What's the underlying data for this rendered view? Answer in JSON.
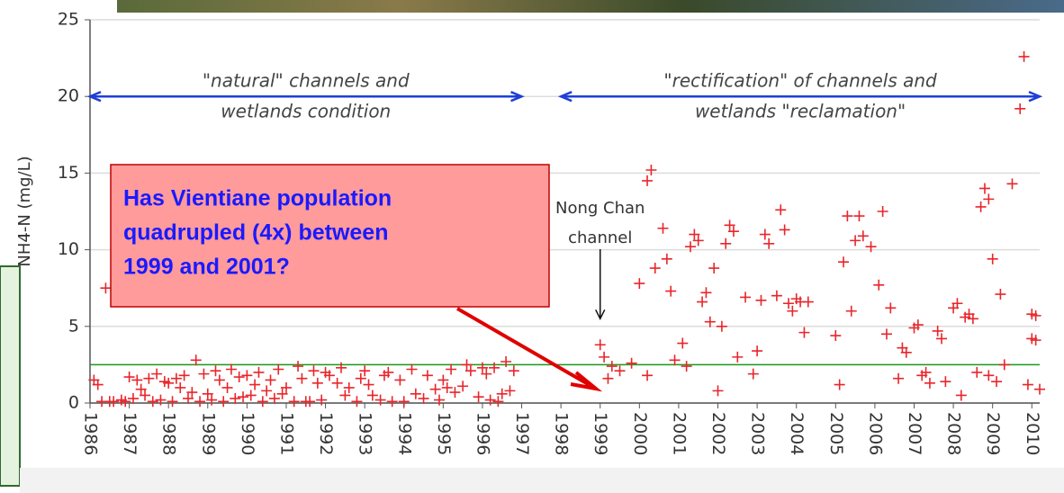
{
  "chart_data": {
    "type": "scatter",
    "ylabel": "NH4-N (mg/L)",
    "xlim": [
      1986,
      2010.2
    ],
    "ylim": [
      0,
      25
    ],
    "xticks": [
      1986,
      1987,
      1988,
      1989,
      1990,
      1991,
      1992,
      1993,
      1994,
      1995,
      1996,
      1997,
      1998,
      1999,
      2000,
      2001,
      2002,
      2003,
      2004,
      2005,
      2006,
      2007,
      2008,
      2009,
      2010
    ],
    "yticks": [
      0,
      5,
      10,
      15,
      20,
      25
    ],
    "grid": true,
    "reference_line": {
      "value": 2.5,
      "color": "#1a9a1a"
    },
    "series": [
      {
        "color": "#e8262b",
        "x": [
          1986.1,
          1986.2,
          1986.3,
          1986.4,
          1986.5,
          1986.6,
          1986.8,
          1986.9,
          1987.0,
          1987.1,
          1987.2,
          1987.3,
          1987.4,
          1987.5,
          1987.6,
          1987.7,
          1987.8,
          1987.9,
          1988.0,
          1988.1,
          1988.2,
          1988.3,
          1988.4,
          1988.5,
          1988.6,
          1988.7,
          1988.8,
          1988.9,
          1989.0,
          1989.1,
          1989.2,
          1989.3,
          1989.4,
          1989.5,
          1989.6,
          1989.7,
          1989.8,
          1989.9,
          1990.0,
          1990.1,
          1990.2,
          1990.3,
          1990.4,
          1990.5,
          1990.6,
          1990.7,
          1990.8,
          1990.9,
          1991.0,
          1991.2,
          1991.3,
          1991.4,
          1991.5,
          1991.6,
          1991.7,
          1991.8,
          1991.9,
          1992.0,
          1992.1,
          1992.3,
          1992.4,
          1992.5,
          1992.6,
          1992.8,
          1992.9,
          1993.0,
          1993.1,
          1993.2,
          1993.4,
          1993.5,
          1993.6,
          1993.7,
          1993.9,
          1994.0,
          1994.2,
          1994.3,
          1994.5,
          1994.6,
          1994.8,
          1994.9,
          1995.0,
          1995.1,
          1995.2,
          1995.3,
          1995.5,
          1995.6,
          1995.7,
          1995.9,
          1996.0,
          1996.1,
          1996.2,
          1996.3,
          1996.4,
          1996.5,
          1996.6,
          1996.7,
          1996.8,
          1999.0,
          1999.1,
          1999.2,
          1999.3,
          1999.5,
          1999.8,
          2000.0,
          2000.2,
          2000.3,
          2000.4,
          2000.6,
          2000.7,
          2000.8,
          2000.9,
          2000.2,
          2001.1,
          2001.2,
          2001.3,
          2001.4,
          2001.5,
          2001.6,
          2001.7,
          2001.8,
          2001.9,
          2002.0,
          2002.1,
          2002.2,
          2002.3,
          2002.4,
          2002.5,
          2002.7,
          2002.9,
          2003.0,
          2003.1,
          2003.2,
          2003.3,
          2003.5,
          2003.6,
          2003.7,
          2003.8,
          2003.9,
          2004.0,
          2004.1,
          2004.2,
          2004.3,
          2005.0,
          2005.1,
          2005.2,
          2005.3,
          2005.4,
          2005.5,
          2005.6,
          2005.7,
          2005.9,
          2006.1,
          2006.2,
          2006.3,
          2006.4,
          2006.6,
          2006.7,
          2006.8,
          2007.0,
          2007.1,
          2007.2,
          2007.3,
          2007.4,
          2007.6,
          2007.7,
          2007.8,
          2008.0,
          2008.1,
          2008.2,
          2008.3,
          2008.4,
          2008.5,
          2008.6,
          2008.7,
          2008.8,
          2008.9,
          2008.9,
          2009.0,
          2009.1,
          2009.2,
          2009.3,
          2009.5,
          2009.7,
          2009.8,
          2009.9,
          2010.0,
          2010.0,
          2010.1,
          2010.1,
          2010.2
        ],
        "values": [
          1.5,
          1.2,
          0.1,
          7.5,
          0.1,
          0.1,
          0.2,
          0.1,
          1.7,
          0.3,
          1.5,
          0.9,
          0.5,
          1.6,
          0.1,
          1.9,
          0.2,
          1.4,
          1.3,
          0.1,
          1.6,
          1.0,
          1.8,
          0.3,
          0.7,
          2.8,
          0.1,
          1.9,
          0.6,
          0.2,
          2.1,
          1.5,
          0.1,
          1.0,
          2.2,
          0.3,
          1.7,
          0.4,
          1.8,
          0.5,
          1.2,
          2.0,
          0.1,
          0.8,
          1.5,
          0.3,
          2.2,
          0.6,
          1.0,
          0.1,
          2.4,
          1.6,
          0.1,
          0.1,
          2.1,
          1.3,
          0.2,
          2.0,
          1.8,
          1.3,
          2.3,
          0.5,
          1.0,
          0.1,
          1.6,
          2.1,
          1.2,
          0.5,
          0.2,
          1.8,
          2.0,
          0.1,
          1.5,
          0.1,
          2.2,
          0.6,
          0.3,
          1.8,
          0.9,
          0.2,
          1.5,
          1.0,
          2.2,
          0.7,
          1.1,
          2.5,
          2.1,
          0.4,
          2.3,
          1.9,
          0.2,
          2.3,
          0.1,
          0.6,
          2.7,
          0.8,
          2.1,
          3.8,
          3.0,
          1.6,
          2.4,
          2.1,
          2.6,
          7.8,
          14.5,
          15.2,
          8.8,
          11.4,
          9.4,
          7.3,
          2.8,
          1.8,
          3.9,
          2.4,
          10.2,
          11.0,
          10.6,
          6.6,
          7.2,
          5.3,
          8.8,
          0.8,
          5.0,
          10.4,
          11.6,
          11.2,
          3.0,
          6.9,
          1.9,
          3.4,
          6.7,
          11.0,
          10.4,
          7.0,
          12.6,
          11.3,
          6.5,
          6.0,
          6.8,
          6.6,
          4.6,
          6.6,
          4.4,
          1.2,
          9.2,
          12.2,
          6.0,
          10.6,
          12.2,
          10.9,
          10.2,
          7.7,
          12.5,
          4.5,
          6.2,
          1.6,
          3.6,
          3.3,
          4.9,
          5.1,
          1.8,
          2.0,
          1.3,
          4.7,
          4.2,
          1.4,
          6.2,
          6.5,
          0.5,
          5.6,
          5.8,
          5.5,
          2.0,
          12.8,
          14.0,
          13.3,
          1.8,
          9.4,
          1.4,
          7.1,
          2.5,
          14.3,
          19.2,
          22.6,
          1.2,
          4.2,
          5.8,
          4.1,
          5.7,
          0.9
        ]
      }
    ],
    "spans": [
      {
        "start": 1986,
        "end": 1997,
        "y": 20,
        "color": "#1f3fd6",
        "lines": [
          "\"natural\" channels and",
          "wetlands condition"
        ]
      },
      {
        "start": 1998,
        "end": 2010.2,
        "y": 20,
        "color": "#1f3fd6",
        "lines": [
          "\"rectification\" of channels and",
          "wetlands \"reclamation\""
        ]
      }
    ],
    "note": {
      "x": 1999,
      "y": 5.5,
      "lines": [
        "Nong Chan",
        "channel"
      ]
    },
    "callout": [
      "Has Vientiane population",
      "quadrupled (4x) between",
      "1999 and 2001?"
    ]
  }
}
